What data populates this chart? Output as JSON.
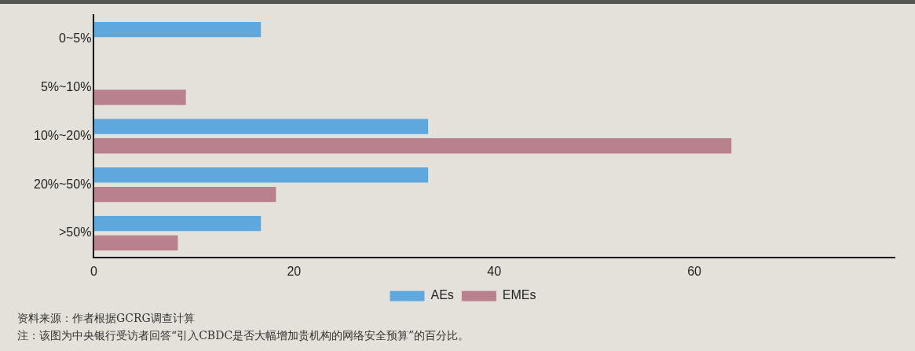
{
  "chart_data": {
    "type": "bar",
    "orientation": "horizontal",
    "categories": [
      "0~5%",
      "5%~10%",
      "10%~20%",
      "20%~50%",
      ">50%"
    ],
    "series": [
      {
        "name": "AEs",
        "color": "#5ea8dd",
        "values": [
          16.7,
          null,
          33.4,
          33.4,
          16.7
        ]
      },
      {
        "name": "EMEs",
        "color": "#b9808d",
        "values": [
          null,
          9.2,
          63.7,
          18.2,
          8.4
        ]
      }
    ],
    "xlim": [
      0,
      80
    ],
    "xticks": [
      0,
      20,
      40,
      60
    ],
    "grid": false,
    "legend": "bottom",
    "annotations": [
      "资料来源：作者根据GCRG调查计算",
      "注：该图为中央银行受访者回答“引入CBDC是否大幅增加贵机构的网络安全预算”的百分比。"
    ]
  }
}
